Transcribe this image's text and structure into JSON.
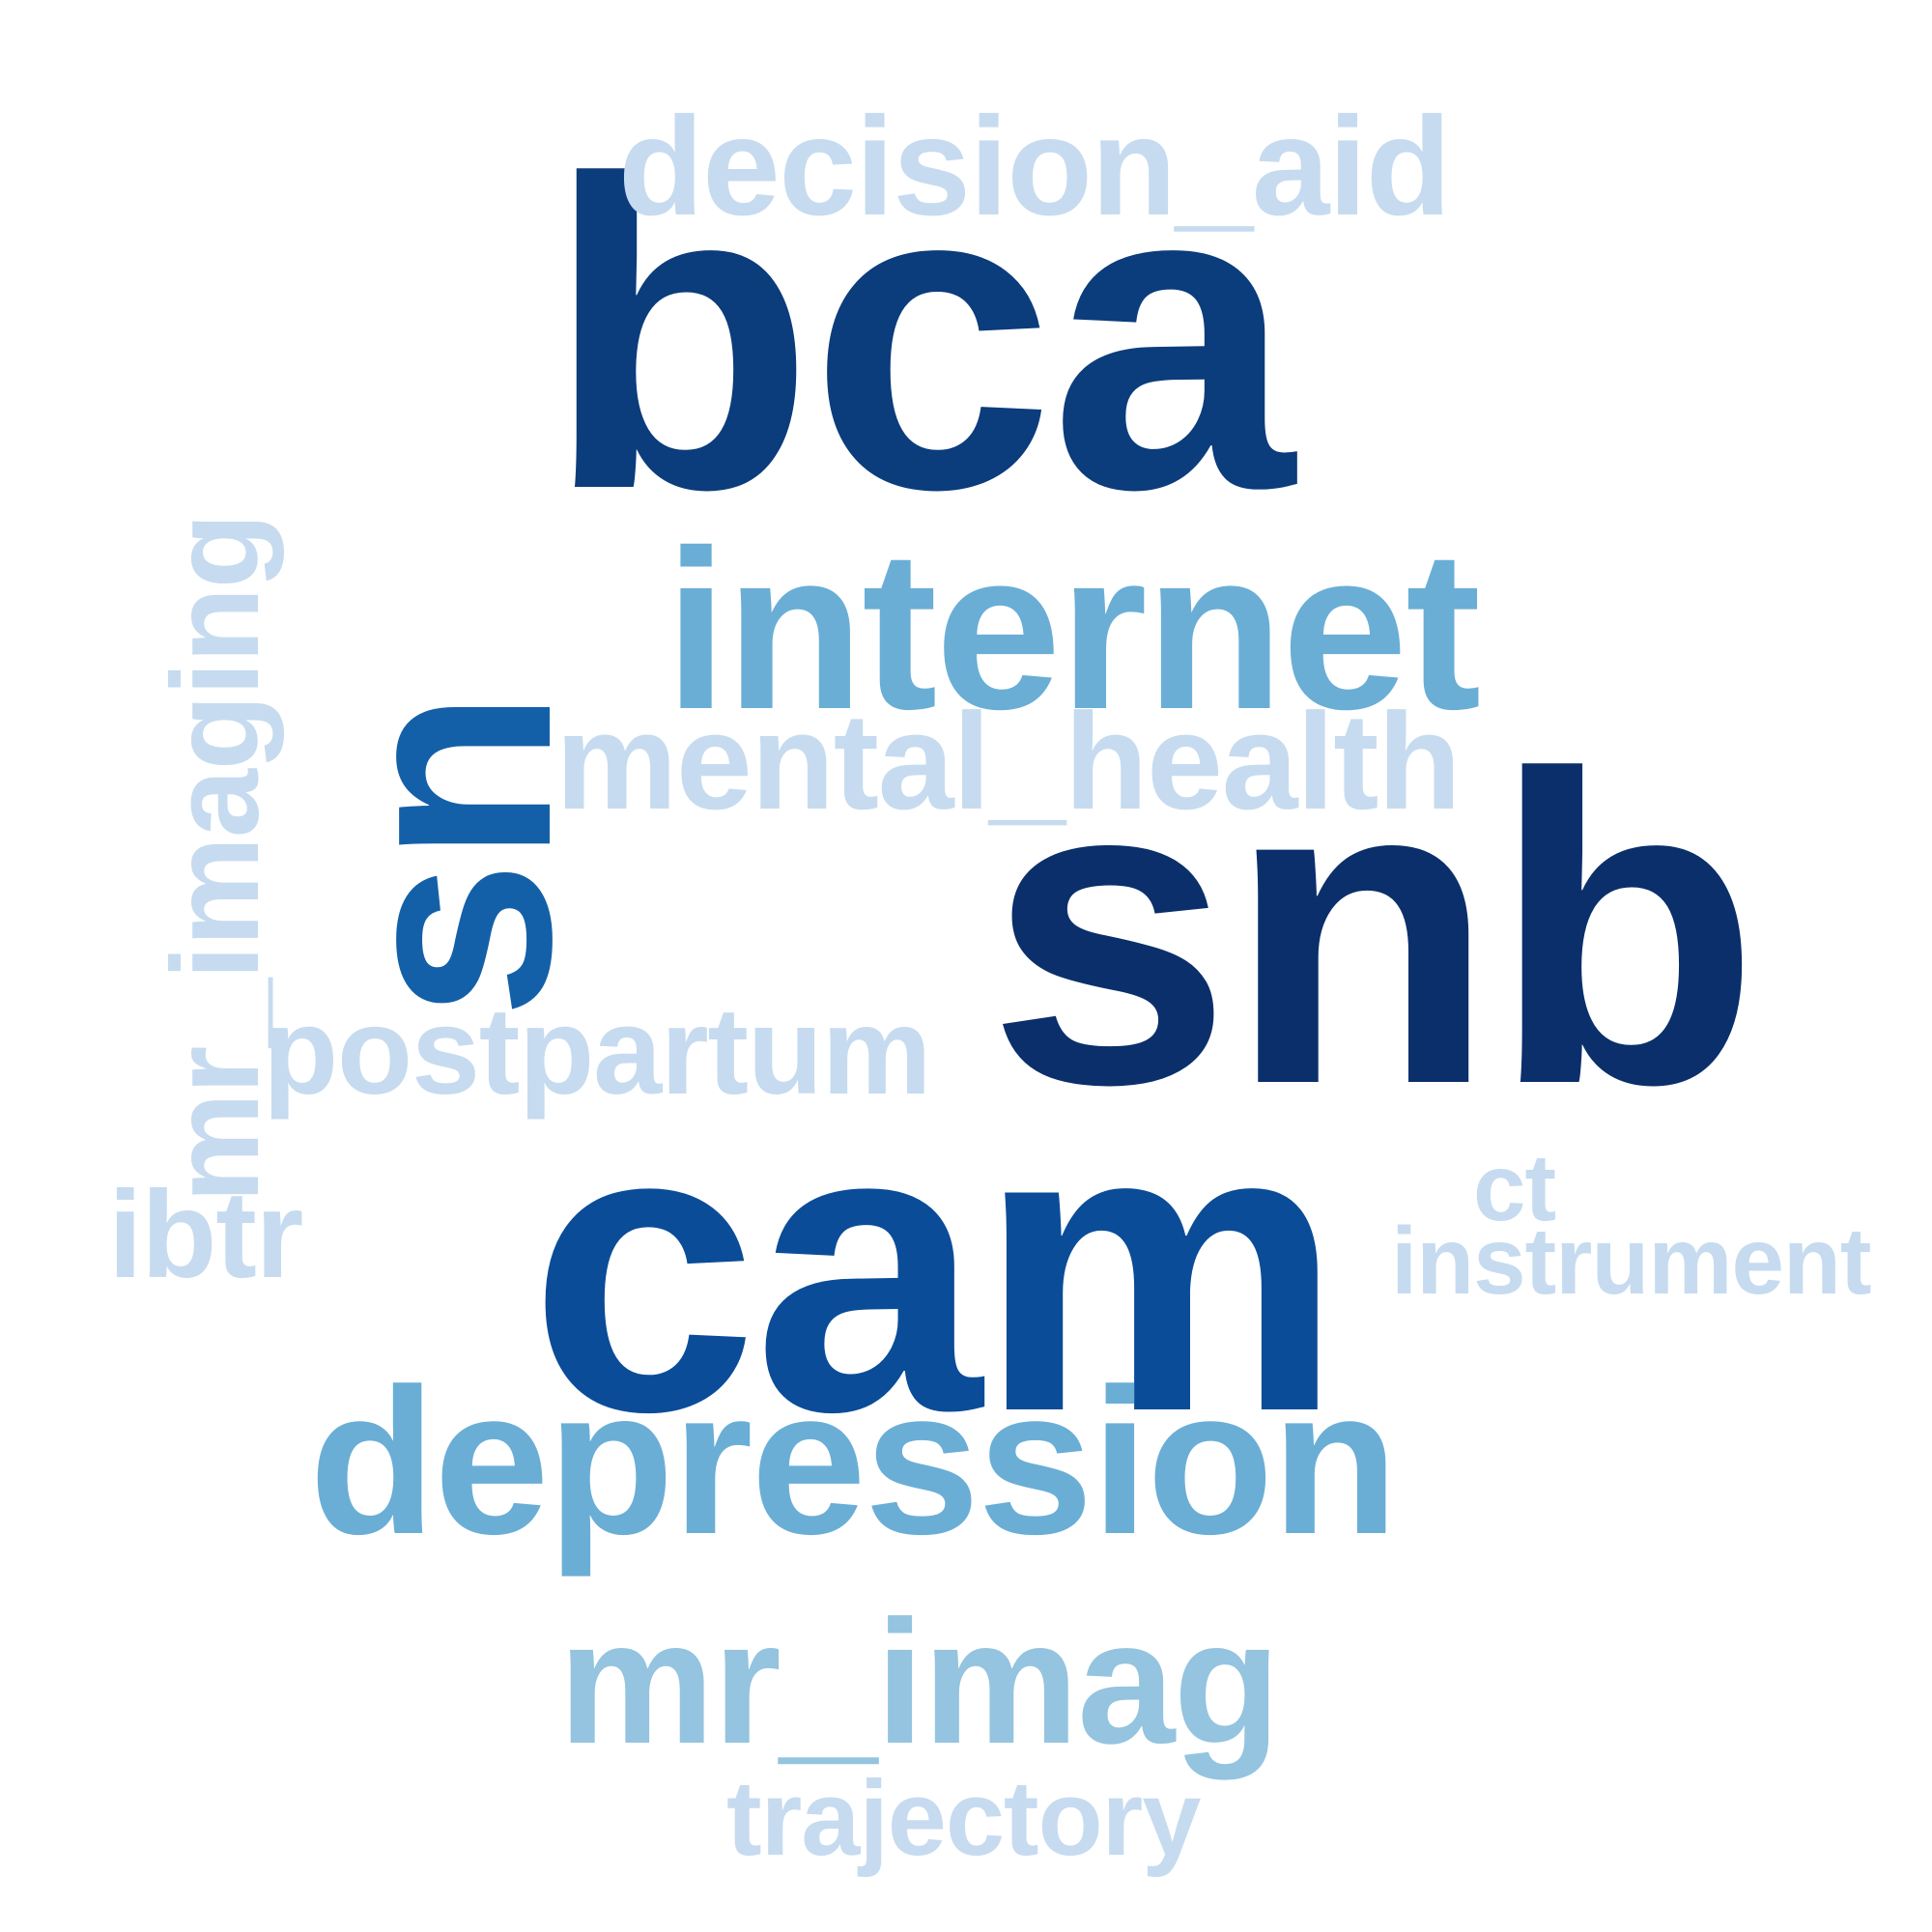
{
  "words": [
    {
      "text": "bca",
      "color": "#0b3c7c"
    },
    {
      "text": "snb",
      "color": "#0a2f6b"
    },
    {
      "text": "cam",
      "color": "#0a4c98"
    },
    {
      "text": "sn",
      "color": "#1460a8"
    },
    {
      "text": "internet",
      "color": "#6aaed6"
    },
    {
      "text": "depression",
      "color": "#6aaed6"
    },
    {
      "text": "mr_imag",
      "color": "#94c4df"
    },
    {
      "text": "mental_health",
      "color": "#c6dbef"
    },
    {
      "text": "decision_aid",
      "color": "#c6dbef"
    },
    {
      "text": "postpartum",
      "color": "#c6dbef"
    },
    {
      "text": "ibtr",
      "color": "#c6dbef"
    },
    {
      "text": "mr_imaging",
      "color": "#c6dbef"
    },
    {
      "text": "trajectory",
      "color": "#c6dbef"
    },
    {
      "text": "ct",
      "color": "#c6dbef"
    },
    {
      "text": "instrument",
      "color": "#c6dbef"
    }
  ]
}
